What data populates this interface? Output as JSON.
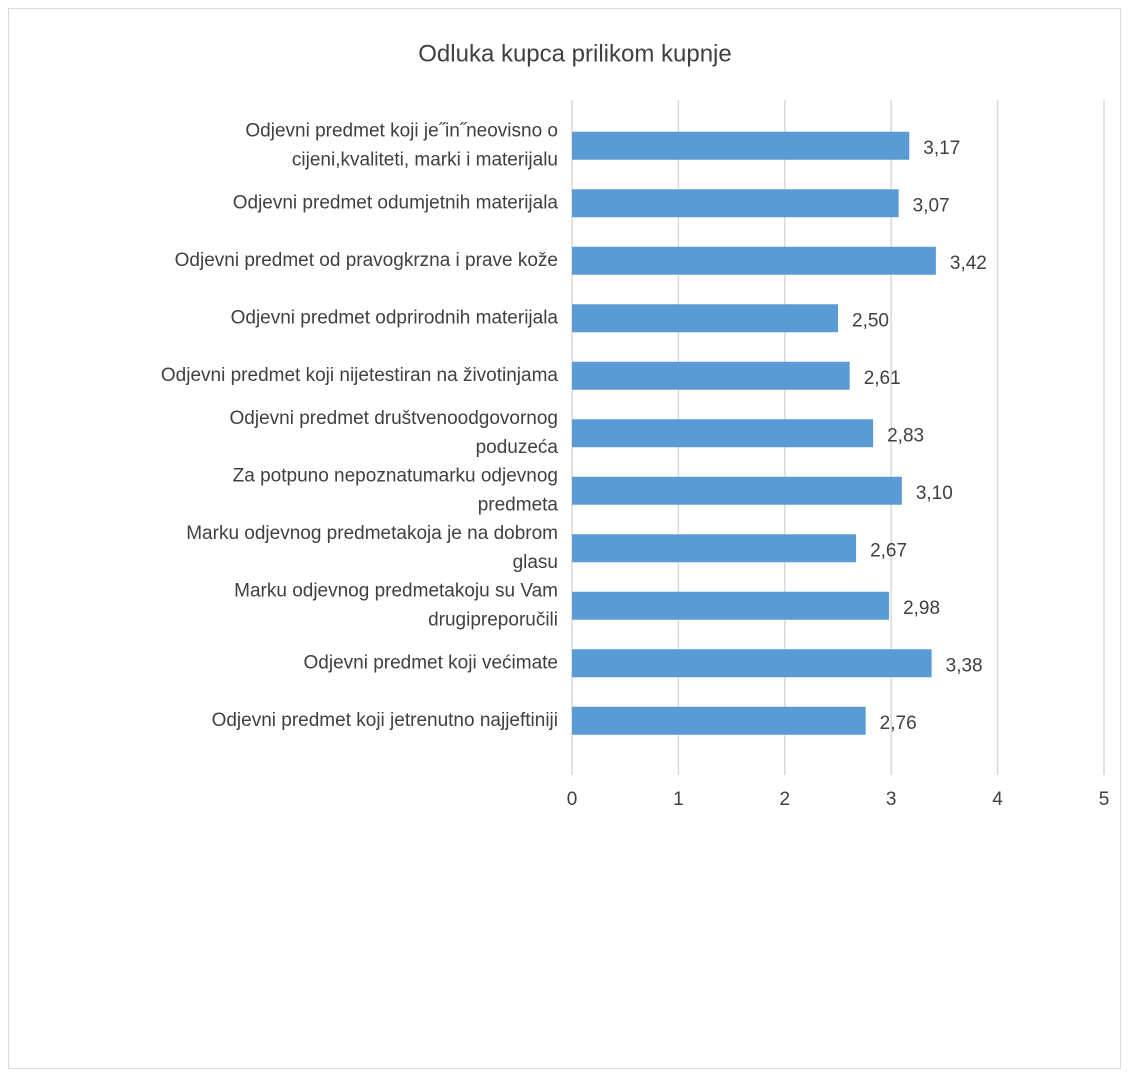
{
  "chart_data": {
    "type": "bar",
    "orientation": "horizontal",
    "title": "Odluka kupca prilikom kupnje",
    "categories": [
      "Odjevni predmet koji je˝in˝neovisno o\ncijeni,kvaliteti, marki i materijalu",
      "Odjevni predmet odumjetnih materijala",
      "Odjevni predmet od pravogkrzna i prave kože",
      "Odjevni predmet odprirodnih materijala",
      "Odjevni predmet koji nijetestiran na životinjama",
      "Odjevni predmet društvenoodgovornog\npoduzeća",
      "Za potpuno nepoznatumarku odjevnog\npredmeta",
      "Marku odjevnog predmetakoja je na dobrom\nglasu",
      "Marku odjevnog predmetakoju su Vam\ndrugipreporučili",
      "Odjevni predmet koji većimate",
      "Odjevni predmet koji jetrenutno najjeftiniji"
    ],
    "values": [
      3.17,
      3.07,
      3.42,
      2.5,
      2.61,
      2.83,
      3.1,
      2.67,
      2.98,
      3.38,
      2.76
    ],
    "value_labels": [
      "3,17",
      "3,07",
      "3,42",
      "2,50",
      "2,61",
      "2,83",
      "3,10",
      "2,67",
      "2,98",
      "3,38",
      "2,76"
    ],
    "color": "#5b9bd5",
    "xlim": [
      0,
      5
    ],
    "xticks": [
      0,
      1,
      2,
      3,
      4,
      5
    ],
    "grid": true
  }
}
